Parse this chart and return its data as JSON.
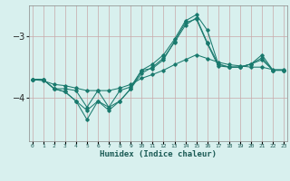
{
  "xlabel": "Humidex (Indice chaleur)",
  "background_color": "#d8f0ee",
  "grid_color_v": "#c8a8a8",
  "grid_color_h": "#c8a8a8",
  "line_color": "#1a7a6e",
  "x_ticks": [
    0,
    1,
    2,
    3,
    4,
    5,
    6,
    7,
    8,
    9,
    10,
    11,
    12,
    13,
    14,
    15,
    16,
    17,
    18,
    19,
    20,
    21,
    22,
    23
  ],
  "yticks": [
    -3,
    -4
  ],
  "ylim": [
    -4.7,
    -2.5
  ],
  "xlim": [
    -0.3,
    23.3
  ],
  "s1": [
    -3.7,
    -3.7,
    -3.85,
    -3.9,
    -4.05,
    -4.35,
    -4.05,
    -4.15,
    -4.05,
    -3.85,
    -3.55,
    -3.45,
    -3.3,
    -3.05,
    -2.75,
    -2.65,
    -2.9,
    -3.45,
    -3.5,
    -3.5,
    -3.45,
    -3.3,
    -3.55,
    -3.55
  ],
  "s2": [
    -3.7,
    -3.7,
    -3.85,
    -3.9,
    -4.05,
    -4.2,
    -4.05,
    -4.2,
    -4.05,
    -3.85,
    -3.6,
    -3.5,
    -3.35,
    -3.1,
    -2.82,
    -2.7,
    -3.1,
    -3.45,
    -3.5,
    -3.5,
    -3.45,
    -3.35,
    -3.55,
    -3.55
  ],
  "s3": [
    -3.7,
    -3.7,
    -3.85,
    -3.85,
    -3.88,
    -4.15,
    -3.88,
    -4.15,
    -3.88,
    -3.82,
    -3.55,
    -3.52,
    -3.38,
    -3.08,
    -2.78,
    -2.72,
    -3.12,
    -3.48,
    -3.5,
    -3.5,
    -3.45,
    -3.38,
    -3.55,
    -3.55
  ],
  "s4": [
    -3.7,
    -3.72,
    -3.78,
    -3.8,
    -3.84,
    -3.88,
    -3.88,
    -3.88,
    -3.84,
    -3.78,
    -3.68,
    -3.62,
    -3.55,
    -3.46,
    -3.38,
    -3.3,
    -3.36,
    -3.42,
    -3.46,
    -3.48,
    -3.5,
    -3.5,
    -3.54,
    -3.54
  ]
}
